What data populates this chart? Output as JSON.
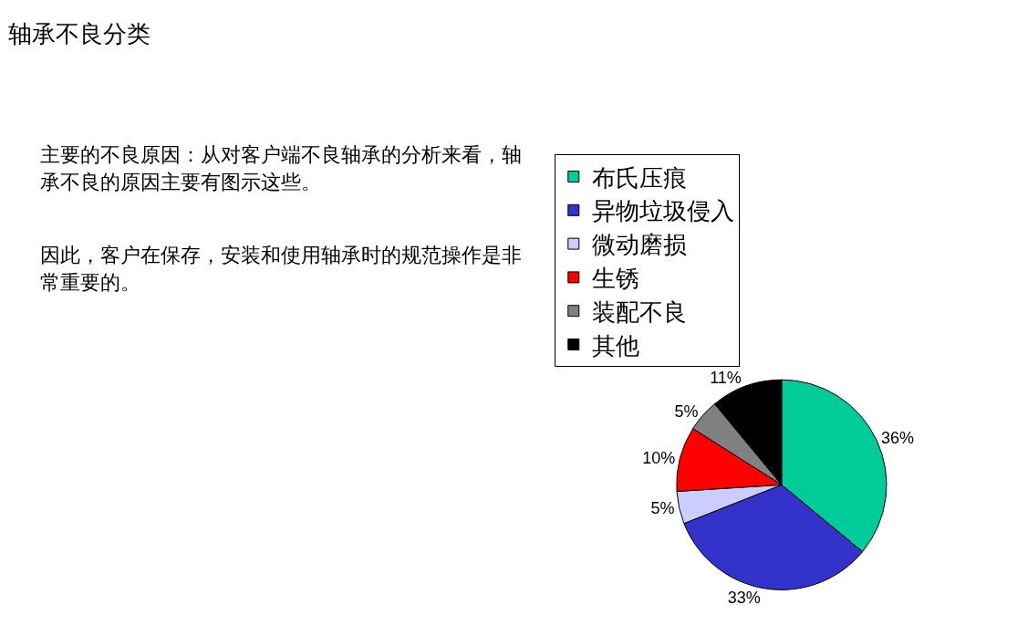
{
  "chart_data": {
    "type": "pie",
    "title": "轴承不良分类",
    "categories": [
      "布氏压痕",
      "异物垃圾侵入",
      "微动磨损",
      "生锈",
      "装配不良",
      "其他"
    ],
    "values": [
      36,
      33,
      5,
      10,
      5,
      11
    ],
    "colors": [
      "#00cc99",
      "#3333cc",
      "#ccccff",
      "#ff0000",
      "#808080",
      "#000000"
    ],
    "value_labels": [
      "36%",
      "33%",
      "5%",
      "10%",
      "5%",
      "11%"
    ],
    "legend": "top",
    "annotations": [
      "主要的不良原因：从对客户端不良轴承的分析来看，轴承不良的原因主要有图示这些。",
      "因此，客户在保存，安装和使用轴承时的规范操作是非常重要的。"
    ]
  }
}
